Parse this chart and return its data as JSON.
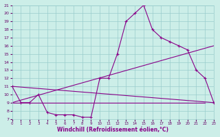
{
  "xlabel": "Windchill (Refroidissement éolien,°C)",
  "xlim": [
    0,
    23
  ],
  "ylim": [
    7,
    21
  ],
  "yticks": [
    7,
    8,
    9,
    10,
    11,
    12,
    13,
    14,
    15,
    16,
    17,
    18,
    19,
    20,
    21
  ],
  "xticks": [
    0,
    1,
    2,
    3,
    4,
    5,
    6,
    7,
    8,
    9,
    10,
    11,
    12,
    13,
    14,
    15,
    16,
    17,
    18,
    19,
    20,
    21,
    22,
    23
  ],
  "bg_color": "#cceee8",
  "line_color": "#880088",
  "grid_color": "#99cccc",
  "main_x": [
    0,
    1,
    2,
    3,
    4,
    5,
    6,
    7,
    8,
    9,
    10,
    11,
    12,
    13,
    14,
    15,
    16,
    17,
    18,
    19,
    20,
    21,
    22,
    23
  ],
  "main_y": [
    11,
    9,
    9,
    10,
    7.8,
    7.5,
    7.5,
    7.5,
    7.2,
    7.2,
    12,
    12,
    15,
    19,
    20,
    21,
    18,
    17,
    16.5,
    16,
    15.5,
    13,
    12,
    9
  ],
  "line2_x": [
    0,
    23
  ],
  "line2_y": [
    11,
    9
  ],
  "line3_x": [
    0,
    23
  ],
  "line3_y": [
    9,
    16
  ],
  "line4_x": [
    0,
    22
  ],
  "line4_y": [
    9,
    9
  ]
}
